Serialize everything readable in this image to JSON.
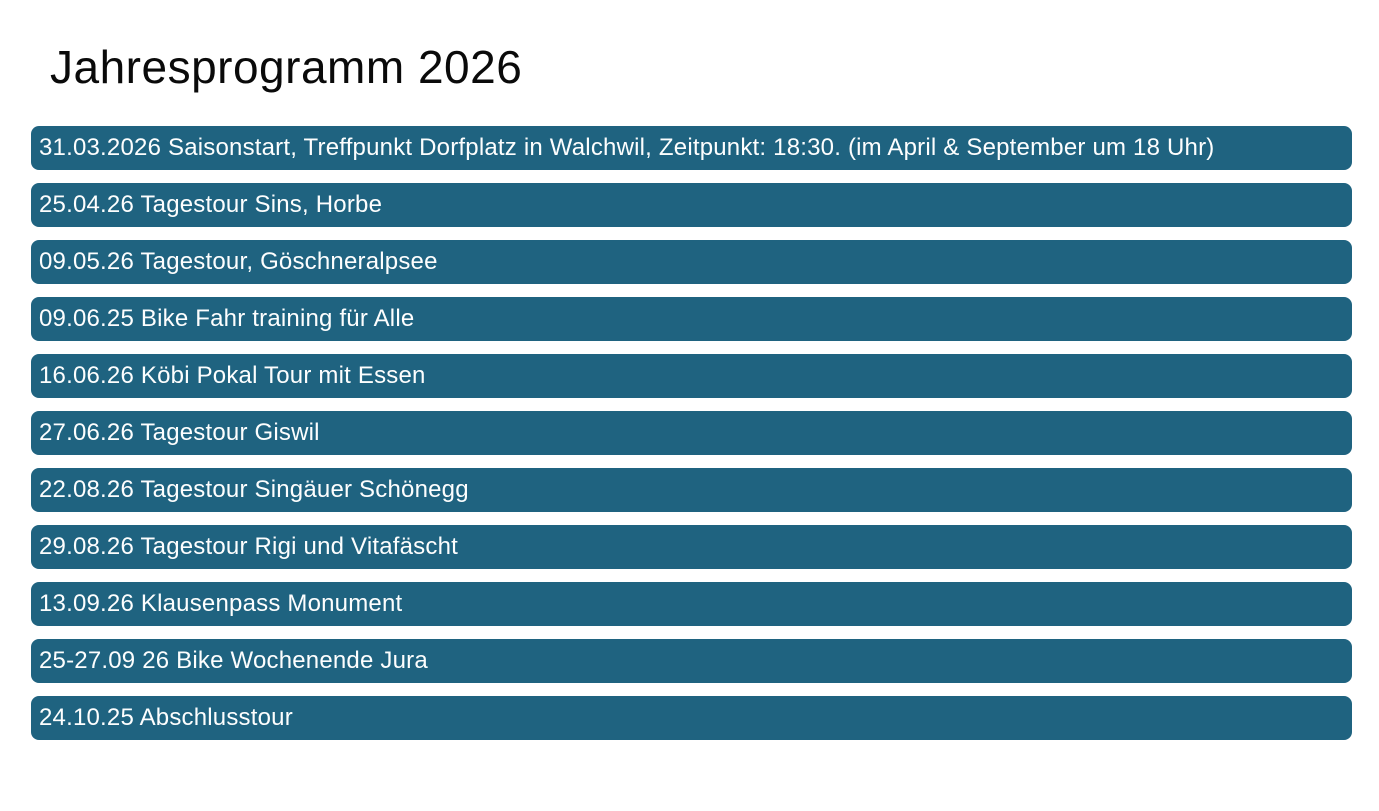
{
  "title": "Jahresprogramm 2026",
  "schedule": {
    "items": [
      {
        "text": "31.03.2026 Saisonstart, Treffpunkt Dorfplatz in Walchwil, Zeitpunkt: 18:30. (im April & September um 18 Uhr)"
      },
      {
        "text": "25.04.26 Tagestour Sins, Horbe"
      },
      {
        "text": "09.05.26 Tagestour, Göschneralpsee"
      },
      {
        "text": "09.06.25 Bike Fahr training für Alle"
      },
      {
        "text": "16.06.26 Köbi Pokal Tour mit Essen"
      },
      {
        "text": "27.06.26 Tagestour Giswil"
      },
      {
        "text": "22.08.26 Tagestour Singäuer Schönegg"
      },
      {
        "text": "29.08.26 Tagestour Rigi und Vitafäscht"
      },
      {
        "text": "13.09.26 Klausenpass Monument"
      },
      {
        "text": "25-27.09 26 Bike Wochenende Jura"
      },
      {
        "text": "24.10.25 Abschlusstour"
      }
    ]
  },
  "colors": {
    "bar_background": "#1F6380",
    "bar_text": "#FDFEFE",
    "title_text": "#0A0A0A",
    "page_background": "#FFFFFF"
  }
}
